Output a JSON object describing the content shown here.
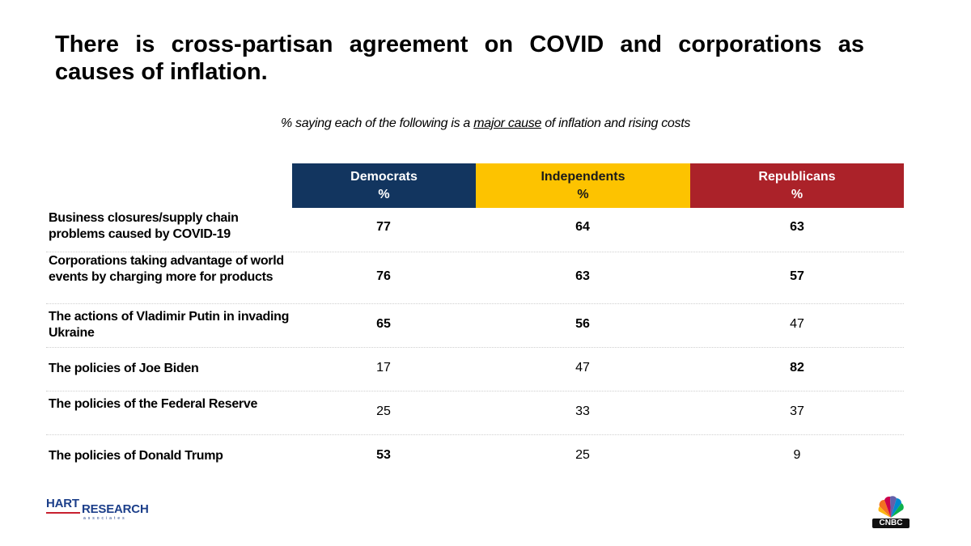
{
  "title": "There is cross-partisan agreement on COVID and corporations as causes of inflation.",
  "subtitle": {
    "before": "% saying each of the following is a",
    "emphasis": "major cause",
    "after": "of inflation and rising costs"
  },
  "chart_data": {
    "type": "table",
    "columns": [
      {
        "name": "Democrats",
        "unit": "%",
        "color": "#12355f"
      },
      {
        "name": "Independents",
        "unit": "%",
        "color": "#fdc300"
      },
      {
        "name": "Republicans",
        "unit": "%",
        "color": "#ab2229"
      }
    ],
    "rows": [
      {
        "label": "Business closures/supply chain problems caused by COVID-19",
        "values": [
          77,
          64,
          63
        ],
        "bold": [
          true,
          true,
          true
        ]
      },
      {
        "label": "Corporations taking advantage of world events by charging more for products",
        "values": [
          76,
          63,
          57
        ],
        "bold": [
          true,
          true,
          true
        ]
      },
      {
        "label": "The actions of Vladimir Putin in invading Ukraine",
        "values": [
          65,
          56,
          47
        ],
        "bold": [
          true,
          true,
          false
        ]
      },
      {
        "label": "The policies of Joe Biden",
        "values": [
          17,
          47,
          82
        ],
        "bold": [
          false,
          false,
          true
        ]
      },
      {
        "label": "The policies of the Federal Reserve",
        "values": [
          25,
          33,
          37
        ],
        "bold": [
          false,
          false,
          false
        ]
      },
      {
        "label": "The policies of Donald Trump",
        "values": [
          53,
          25,
          9
        ],
        "bold": [
          true,
          false,
          false
        ]
      }
    ]
  },
  "logos": {
    "left": {
      "line1": "HART",
      "line2": "RESEARCH",
      "line3": "associates"
    },
    "right": {
      "text": "CNBC"
    }
  }
}
